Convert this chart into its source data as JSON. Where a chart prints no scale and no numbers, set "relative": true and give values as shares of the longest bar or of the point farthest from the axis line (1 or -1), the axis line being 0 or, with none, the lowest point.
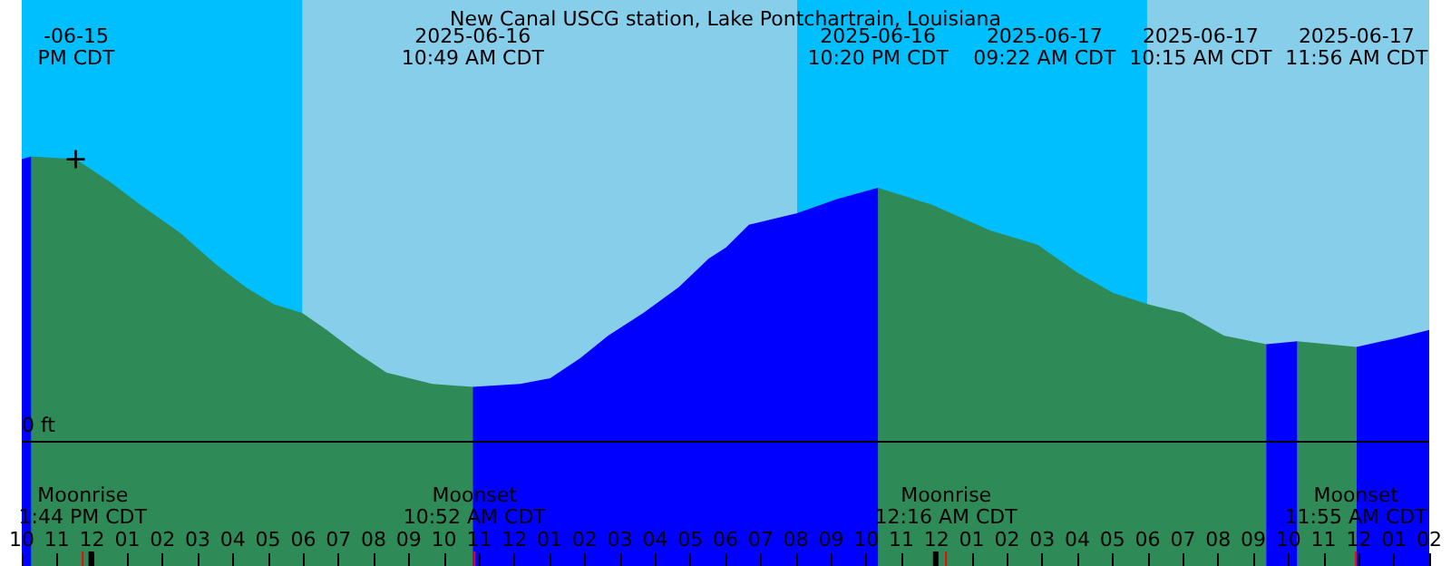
{
  "chart_data": {
    "type": "area",
    "title": "New Canal USCG station, Lake Pontchartrain, Louisiana",
    "relative": true,
    "grid": false,
    "xlim": [
      "2025-06-15T22:00",
      "2025-06-17T14:00"
    ],
    "xticks": [
      {
        "value": "2025-06-15T22:00",
        "label": "10"
      },
      {
        "value": "2025-06-15T23:00",
        "label": "11"
      },
      {
        "value": "2025-06-16T00:00",
        "label": "12"
      },
      {
        "value": "2025-06-16T01:00",
        "label": "01"
      },
      {
        "value": "2025-06-16T02:00",
        "label": "02"
      },
      {
        "value": "2025-06-16T03:00",
        "label": "03"
      },
      {
        "value": "2025-06-16T04:00",
        "label": "04"
      },
      {
        "value": "2025-06-16T05:00",
        "label": "05"
      },
      {
        "value": "2025-06-16T06:00",
        "label": "06"
      },
      {
        "value": "2025-06-16T07:00",
        "label": "07"
      },
      {
        "value": "2025-06-16T08:00",
        "label": "08"
      },
      {
        "value": "2025-06-16T09:00",
        "label": "09"
      },
      {
        "value": "2025-06-16T10:00",
        "label": "10"
      },
      {
        "value": "2025-06-16T11:00",
        "label": "11"
      },
      {
        "value": "2025-06-16T12:00",
        "label": "12"
      },
      {
        "value": "2025-06-16T13:00",
        "label": "01"
      },
      {
        "value": "2025-06-16T14:00",
        "label": "02"
      },
      {
        "value": "2025-06-16T15:00",
        "label": "03"
      },
      {
        "value": "2025-06-16T16:00",
        "label": "04"
      },
      {
        "value": "2025-06-16T17:00",
        "label": "05"
      },
      {
        "value": "2025-06-16T18:00",
        "label": "06"
      },
      {
        "value": "2025-06-16T19:00",
        "label": "07"
      },
      {
        "value": "2025-06-16T20:00",
        "label": "08"
      },
      {
        "value": "2025-06-16T21:00",
        "label": "09"
      },
      {
        "value": "2025-06-16T22:00",
        "label": "10"
      },
      {
        "value": "2025-06-16T23:00",
        "label": "11"
      },
      {
        "value": "2025-06-17T00:00",
        "label": "12"
      },
      {
        "value": "2025-06-17T01:00",
        "label": "01"
      },
      {
        "value": "2025-06-17T02:00",
        "label": "02"
      },
      {
        "value": "2025-06-17T03:00",
        "label": "03"
      },
      {
        "value": "2025-06-17T04:00",
        "label": "04"
      },
      {
        "value": "2025-06-17T05:00",
        "label": "05"
      },
      {
        "value": "2025-06-17T06:00",
        "label": "06"
      },
      {
        "value": "2025-06-17T07:00",
        "label": "07"
      },
      {
        "value": "2025-06-17T08:00",
        "label": "08"
      },
      {
        "value": "2025-06-17T09:00",
        "label": "09"
      },
      {
        "value": "2025-06-17T10:00",
        "label": "10"
      },
      {
        "value": "2025-06-17T11:00",
        "label": "11"
      },
      {
        "value": "2025-06-17T12:00",
        "label": "12"
      },
      {
        "value": "2025-06-17T13:00",
        "label": "01"
      },
      {
        "value": "2025-06-17T14:00",
        "label": "02"
      }
    ],
    "series": [
      {
        "color": "#2e8b57",
        "x": [
          "2025-06-15T22:16",
          "2025-06-15T23:32",
          "2025-06-16T00:31",
          "2025-06-16T01:22",
          "2025-06-16T02:31",
          "2025-06-16T03:31",
          "2025-06-16T04:22",
          "2025-06-16T05:10",
          "2025-06-16T05:58",
          "2025-06-16T06:40",
          "2025-06-16T07:31",
          "2025-06-16T08:22",
          "2025-06-16T09:40",
          "2025-06-16T10:49",
          null,
          "2025-06-16T22:20",
          "2025-06-16T23:52",
          "2025-06-17T01:31",
          "2025-06-17T02:52",
          "2025-06-17T04:01",
          "2025-06-17T05:01",
          "2025-06-17T06:01",
          "2025-06-17T07:01",
          "2025-06-17T08:10",
          "2025-06-17T09:22",
          null,
          "2025-06-17T10:15",
          "2025-06-17T11:56"
        ],
        "values": [
          1,
          0.99,
          0.91,
          0.83,
          0.73,
          0.62,
          0.54,
          0.48,
          0.45,
          0.39,
          0.31,
          0.24,
          0.2,
          0.19,
          null,
          0.89,
          0.83,
          0.74,
          0.69,
          0.59,
          0.52,
          0.48,
          0.45,
          0.37,
          0.34,
          null,
          0.35,
          0.33
        ]
      },
      {
        "color": "#0000ff",
        "x": [
          "2025-06-15T22:00",
          "2025-06-15T22:16",
          null,
          "2025-06-16T10:49",
          "2025-06-16T12:10",
          "2025-06-16T13:01",
          "2025-06-16T13:52",
          "2025-06-16T14:40",
          "2025-06-16T15:40",
          "2025-06-16T16:40",
          "2025-06-16T17:31",
          "2025-06-16T18:01",
          "2025-06-16T18:40",
          "2025-06-16T20:01",
          "2025-06-16T21:10",
          "2025-06-16T22:20",
          null,
          "2025-06-17T09:22",
          "2025-06-17T10:15",
          null,
          "2025-06-17T11:56",
          "2025-06-17T13:01",
          "2025-06-17T14:00"
        ],
        "values": [
          0.99,
          1,
          null,
          0.19,
          0.2,
          0.22,
          0.29,
          0.37,
          0.45,
          0.54,
          0.64,
          0.68,
          0.76,
          0.8,
          0.85,
          0.89,
          null,
          0.34,
          0.35,
          null,
          0.33,
          0.36,
          0.39
        ]
      },
      {
        "type": "scatter",
        "marker": "cross",
        "color": "#000000",
        "x": [
          "2025-06-15T23:32"
        ],
        "values": [
          0.99
        ]
      }
    ],
    "bands": [
      {
        "axis": "x",
        "from": "2025-06-15T22:00",
        "to": "2025-06-16T05:59",
        "color": "#00bfff"
      },
      {
        "axis": "x",
        "from": "2025-06-16T05:59",
        "to": "2025-06-16T20:02",
        "color": "#87ceeb"
      },
      {
        "axis": "x",
        "from": "2025-06-16T20:02",
        "to": "2025-06-17T05:59",
        "color": "#00bfff"
      },
      {
        "axis": "x",
        "from": "2025-06-17T05:59",
        "to": "2025-06-17T14:00",
        "color": "#87ceeb"
      }
    ],
    "ref_lines": [
      {
        "axis": "y",
        "value": 0,
        "label": "0 ft",
        "color": "#000000"
      },
      {
        "axis": "x",
        "value": "2025-06-15T23:44",
        "label": "Moonrise\n1:44 PM CDT",
        "color": "#ff0000"
      },
      {
        "axis": "x",
        "value": "2025-06-16T10:52",
        "label": "Moonset\n10:52 AM CDT",
        "color": "#ff0000"
      },
      {
        "axis": "x",
        "value": "2025-06-17T00:16",
        "label": "Moonrise\n12:16 AM CDT",
        "color": "#ff0000"
      },
      {
        "axis": "x",
        "value": "2025-06-17T11:55",
        "label": "Moonset\n11:55 AM CDT",
        "color": "#ff0000"
      }
    ],
    "annotations": [
      "-06-15\nPM CDT",
      "2025-06-16\n10:49 AM CDT",
      "2025-06-16\n10:20 PM CDT",
      "2025-06-17\n09:22 AM CDT",
      "2025-06-17\n10:15 AM CDT",
      "2025-06-17\n11:56 AM CDT"
    ]
  }
}
